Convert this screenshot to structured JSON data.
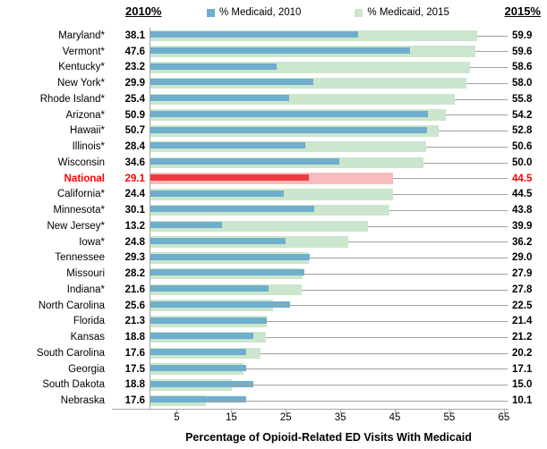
{
  "header": {
    "left_label": "2010%",
    "right_label": "2015%"
  },
  "legend": {
    "items": [
      {
        "label": "% Medicaid, 2010",
        "color": "#6FAECD"
      },
      {
        "label": "% Medicaid, 2015",
        "color": "#CBE6CD"
      }
    ]
  },
  "colors": {
    "bar_2010": "#6FAECD",
    "bar_2015": "#CBE6CD",
    "highlight_bar_2010": "#F03B3E",
    "highlight_bar_2015": "#F8BBBE",
    "highlight_text": "#FF0000",
    "axis_line": "#A6A6A6"
  },
  "chart_data": {
    "type": "bar",
    "orientation": "horizontal",
    "title": "",
    "xlabel": "Percentage of Opioid-Related ED Visits With Medicaid",
    "ylabel": "",
    "xlim": [
      0,
      66
    ],
    "xticks": [
      5,
      15,
      25,
      35,
      45,
      55,
      65
    ],
    "grid": false,
    "legend_position": "top",
    "highlight_category": "National",
    "categories": [
      "Maryland*",
      "Vermont*",
      "Kentucky*",
      "New York*",
      "Rhode Island*",
      "Arizona*",
      "Hawaii*",
      "Illinois*",
      "Wisconsin",
      "National",
      "California*",
      "Minnesota*",
      "New Jersey*",
      "Iowa*",
      "Tennessee",
      "Missouri",
      "Indiana*",
      "North Carolina",
      "Florida",
      "Kansas",
      "South Carolina",
      "Georgia",
      "South Dakota",
      "Nebraska"
    ],
    "series": [
      {
        "name": "% Medicaid, 2010",
        "values": [
          38.1,
          47.6,
          23.2,
          29.9,
          25.4,
          50.9,
          50.7,
          28.4,
          34.6,
          29.1,
          24.4,
          30.1,
          13.2,
          24.8,
          29.3,
          28.2,
          21.6,
          25.6,
          21.3,
          18.8,
          17.6,
          17.5,
          18.8,
          17.6
        ]
      },
      {
        "name": "% Medicaid, 2015",
        "values": [
          59.9,
          59.6,
          58.6,
          58.0,
          55.8,
          54.2,
          52.8,
          50.6,
          50.0,
          44.5,
          44.5,
          43.8,
          39.9,
          36.2,
          29.0,
          27.9,
          27.8,
          22.5,
          21.4,
          21.2,
          20.2,
          17.1,
          15.0,
          10.1
        ]
      }
    ]
  }
}
